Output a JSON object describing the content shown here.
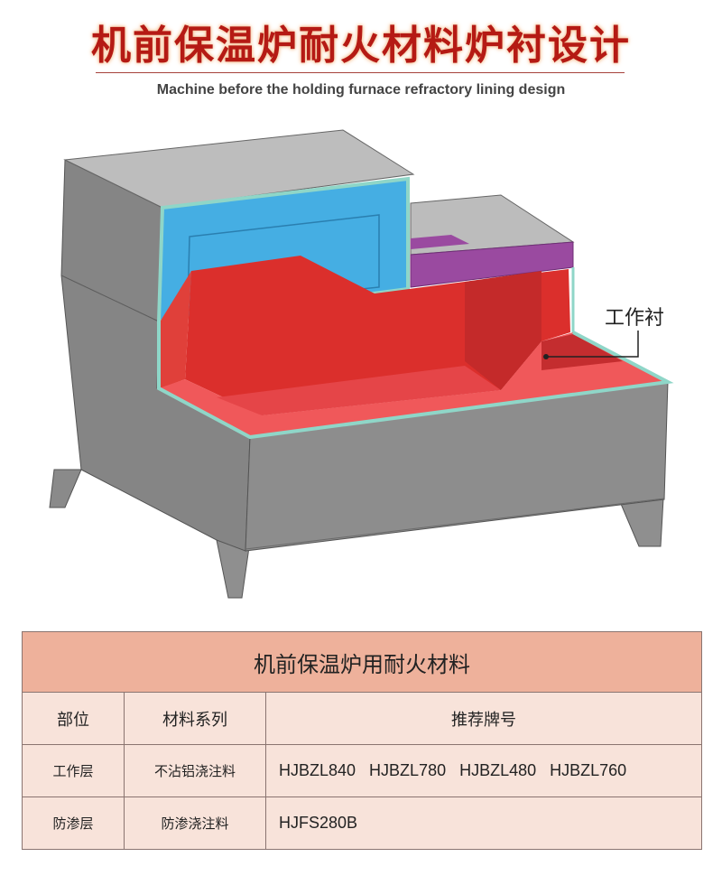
{
  "header": {
    "title": "机前保温炉耐火材料炉衬设计",
    "subtitle": "Machine before the holding furnace refractory lining design"
  },
  "diagram": {
    "callout": "工作衬",
    "colors": {
      "shell": "#8d8d8d",
      "insulation": "#45aee3",
      "working_lining": "#e0332f",
      "anti_seepage": "#9a4aa0",
      "edge": "#8fd6c8"
    }
  },
  "table": {
    "caption": "机前保温炉用耐火材料",
    "columns": [
      "部位",
      "材料系列",
      "推荐牌号"
    ],
    "rows": [
      {
        "part": "工作层",
        "series": "不沾铝浇注料",
        "codes": "HJBZL840   HJBZL780   HJBZL480   HJBZL760"
      },
      {
        "part": "防渗层",
        "series": "防渗浇注料",
        "codes": "HJFS280B"
      }
    ]
  }
}
